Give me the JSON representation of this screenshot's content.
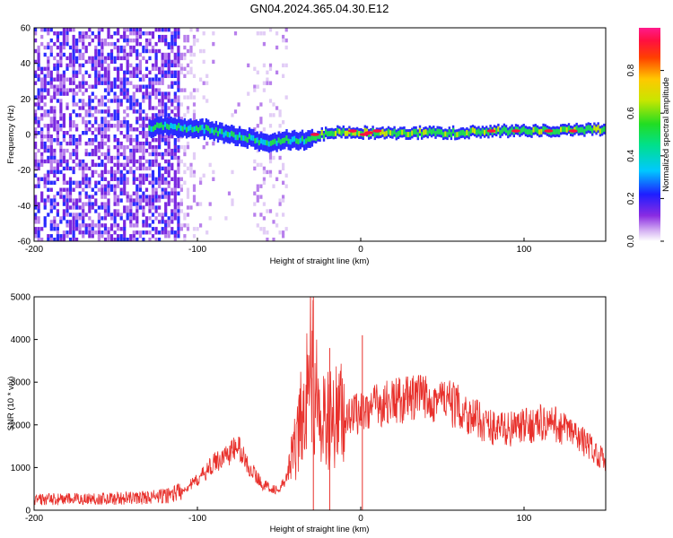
{
  "title": "GN04.2024.365.04.30.E12",
  "chart_data": [
    {
      "type": "heatmap",
      "xlabel": "Height of straight line (km)",
      "ylabel": "Frequency (Hz)",
      "xlim": [
        -200,
        150
      ],
      "ylim": [
        -60,
        60
      ],
      "xticks": [
        "-200",
        "-100",
        "0",
        "100"
      ],
      "yticks": [
        "60",
        "40",
        "20",
        "0",
        "-20",
        "-40",
        "-60"
      ],
      "colorbar": {
        "label": "Normalized spectral amplitude",
        "range": [
          0,
          1
        ],
        "ticks": [
          "0.0",
          "0.2",
          "0.4",
          "0.6",
          "0.8"
        ]
      },
      "signal_track": {
        "x": [
          -130,
          -115,
          -105,
          -95,
          -85,
          -75,
          -65,
          -55,
          -45,
          -35,
          -25,
          -15,
          -5,
          5,
          20,
          40,
          60,
          80,
          100,
          120,
          140,
          150
        ],
        "freq": [
          4,
          5,
          3,
          3,
          1,
          -1,
          -3,
          -5,
          -3,
          -3,
          0,
          1,
          1,
          1,
          1,
          1,
          1,
          2,
          2,
          2,
          3,
          3
        ]
      }
    },
    {
      "type": "line",
      "xlabel": "Height of straight line (km)",
      "ylabel": "SNR (10 * v/v)",
      "xlim": [
        -200,
        150
      ],
      "ylim": [
        0,
        5000
      ],
      "xticks": [
        "-200",
        "-100",
        "0",
        "100"
      ],
      "yticks": [
        "5000",
        "4000",
        "3000",
        "2000",
        "1000",
        "0"
      ],
      "color": "#e8302b",
      "series": [
        {
          "x": [
            -200,
            -180,
            -160,
            -140,
            -120,
            -110,
            -100,
            -90,
            -80,
            -75,
            -70,
            -60,
            -50,
            -45,
            -40,
            -35,
            -32,
            -30,
            -28,
            -25,
            -20,
            -10,
            0,
            10,
            20,
            30,
            40,
            50,
            60,
            70,
            80,
            90,
            100,
            110,
            120,
            130,
            140,
            150
          ],
          "values": [
            250,
            260,
            270,
            280,
            330,
            450,
            700,
            1100,
            1350,
            1500,
            1100,
            600,
            450,
            800,
            1500,
            2200,
            3400,
            3000,
            2400,
            2000,
            2100,
            2250,
            2300,
            2450,
            2550,
            2600,
            2650,
            2600,
            2400,
            2150,
            1950,
            1900,
            1950,
            2050,
            2000,
            1800,
            1500,
            1150
          ]
        }
      ],
      "spikes": [
        {
          "x": -29,
          "value": 5000
        },
        {
          "x": 1,
          "value": 4100
        },
        {
          "x": -19,
          "value": 3800
        }
      ]
    }
  ]
}
